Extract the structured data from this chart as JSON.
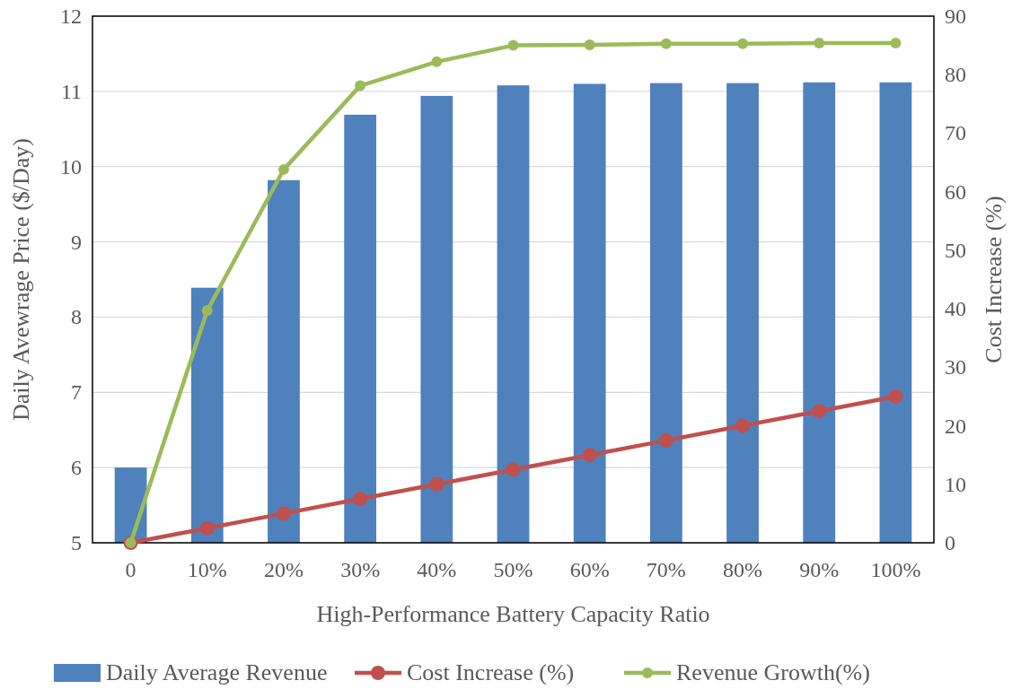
{
  "chart_data": {
    "type": "bar",
    "xlabel": "High-Performance Battery Capacity Ratio",
    "ylabel": "Daily Avewrage Price ($/Day)",
    "y2label": "Cost Increase (%)",
    "categories": [
      "0",
      "10%",
      "20%",
      "30%",
      "40%",
      "50%",
      "60%",
      "70%",
      "80%",
      "90%",
      "100%"
    ],
    "series": [
      {
        "name": "Daily Average Revenue",
        "color": "#4f81bd",
        "values": [
          6.0,
          8.39,
          9.82,
          10.69,
          10.94,
          11.08,
          11.1,
          11.11,
          11.11,
          11.12,
          11.12
        ]
      },
      {
        "name": "Cost Increase (%)",
        "type": "line",
        "axis": "y2",
        "color": "#c0504d",
        "values": [
          0,
          2.5,
          5,
          7.5,
          10,
          12.5,
          15,
          17.5,
          20,
          22.5,
          25
        ]
      },
      {
        "name": "Revenue Growth(%)",
        "type": "line",
        "axis": "y2",
        "color": "#9bbb59",
        "values": [
          0,
          39.7,
          63.8,
          78.1,
          82.2,
          85,
          85.1,
          85.3,
          85.3,
          85.4,
          85.4
        ]
      }
    ],
    "ylim": [
      5,
      12
    ],
    "yticks": [
      5,
      6,
      7,
      8,
      9,
      10,
      11,
      12
    ],
    "y2lim": [
      0,
      90
    ],
    "y2ticks": [
      0,
      10,
      20,
      30,
      40,
      50,
      60,
      70,
      80,
      90
    ],
    "grid": "y",
    "legend": "bottom",
    "marker": "circle",
    "line_style": "solid"
  }
}
